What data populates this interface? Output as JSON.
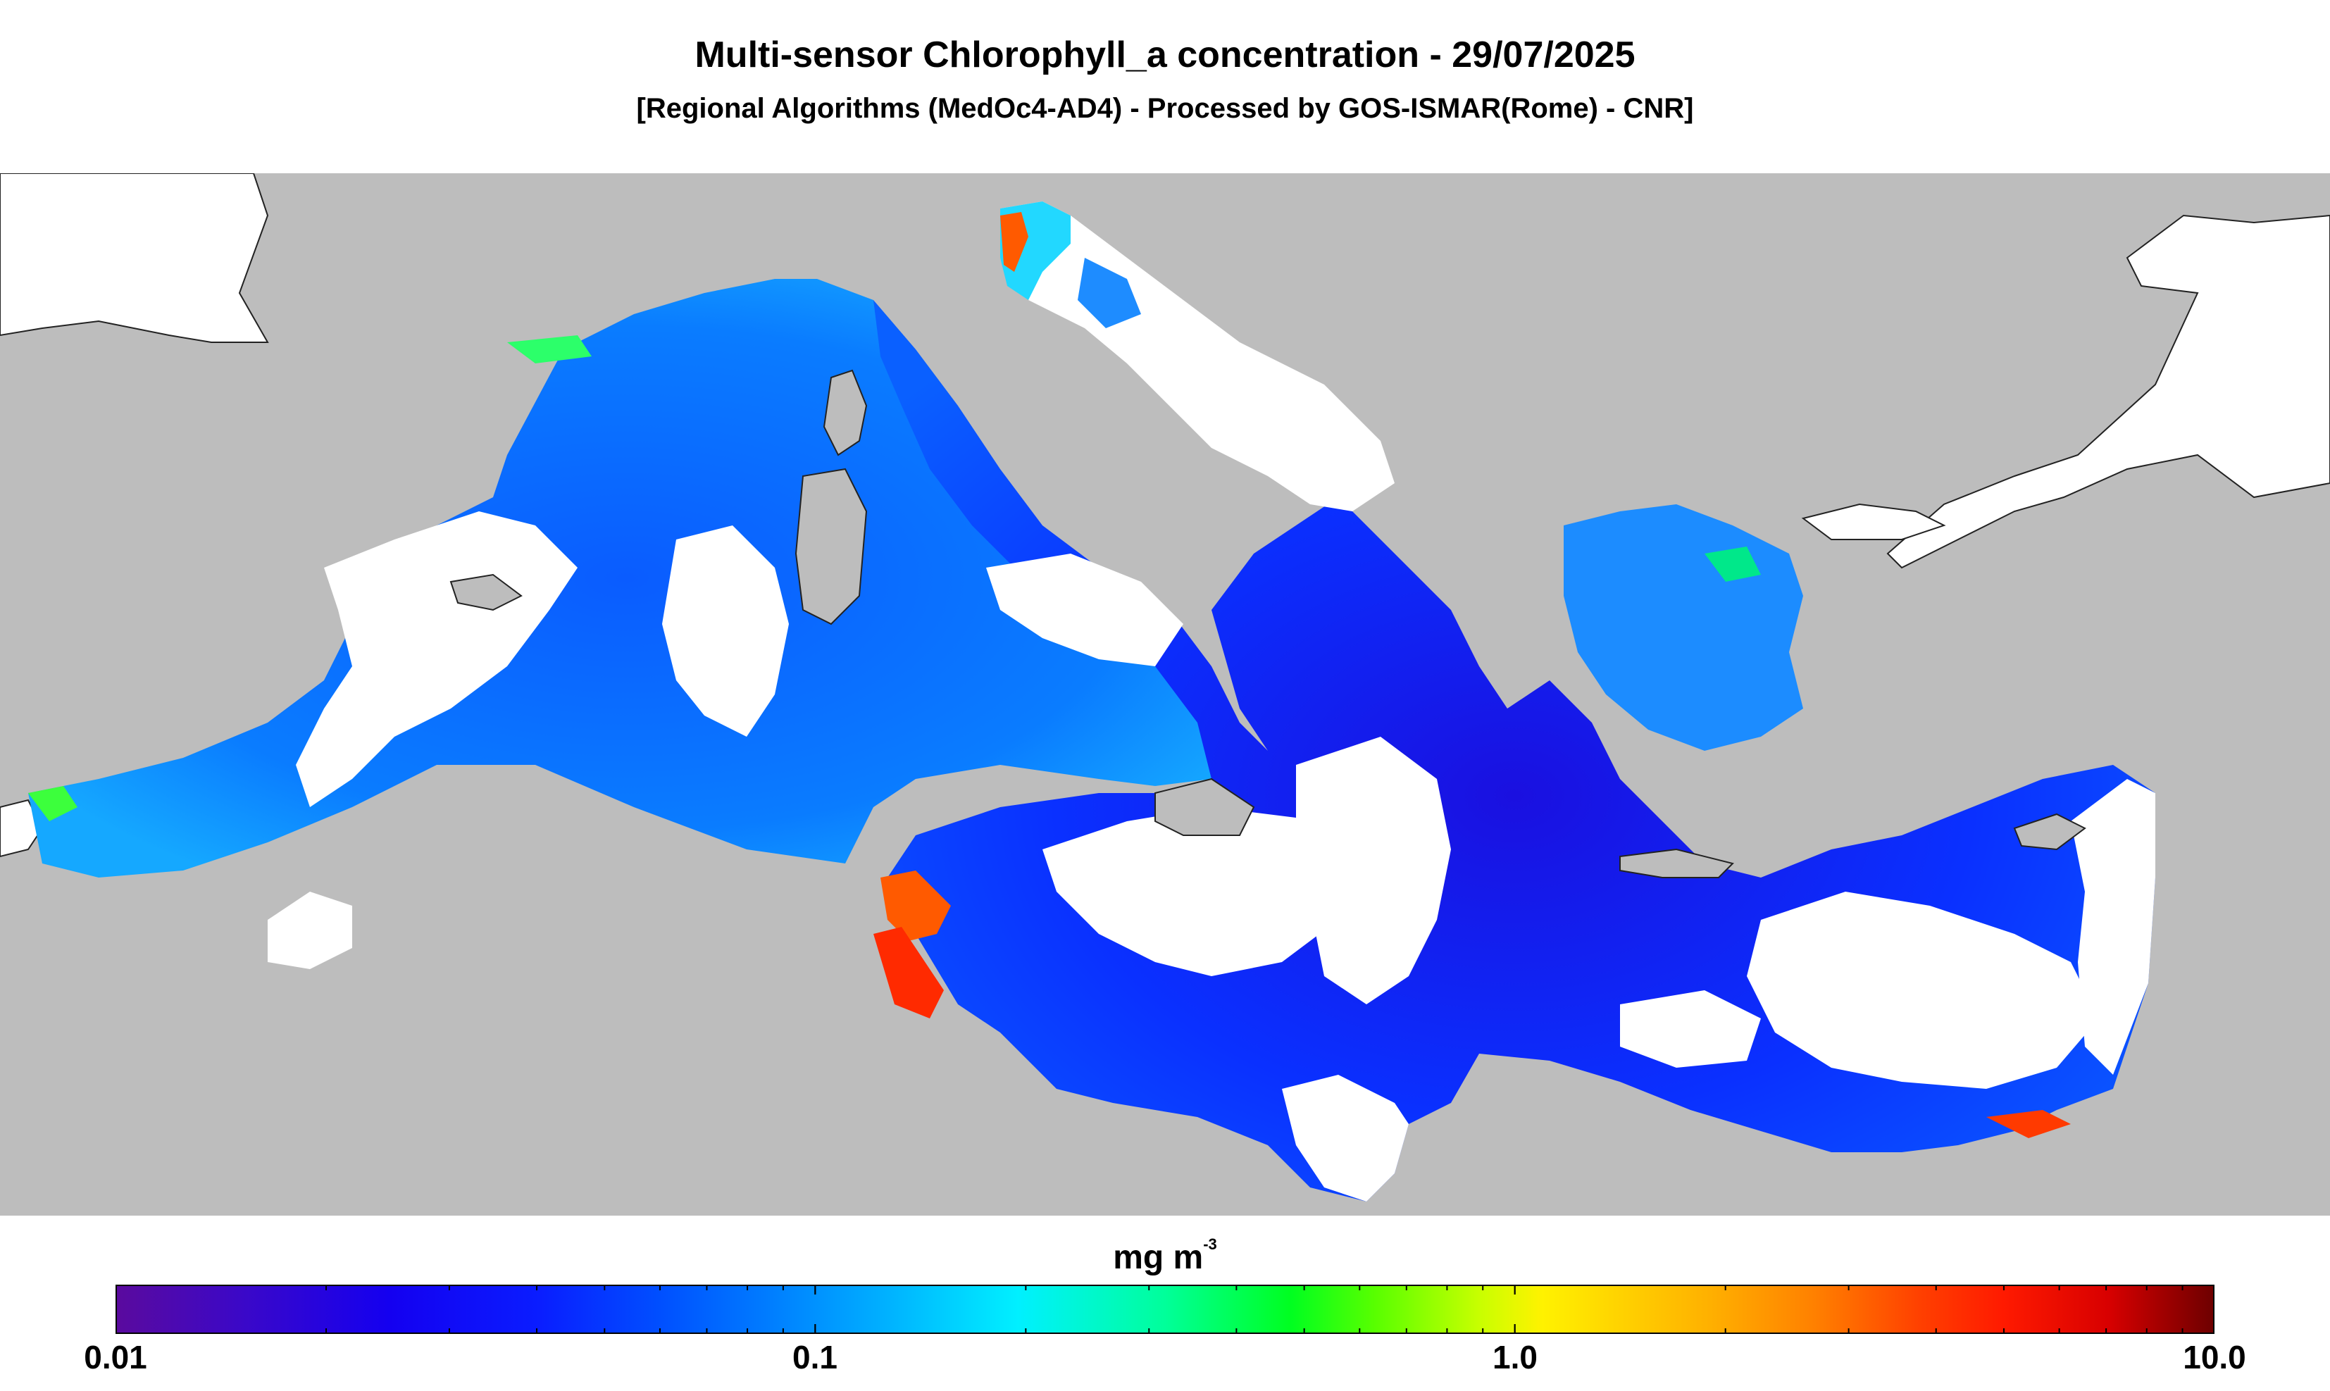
{
  "header": {
    "title": "Multi-sensor Chlorophyll_a concentration - 29/07/2025",
    "subtitle": "[Regional Algorithms (MedOc4-AD4) - Processed by GOS-ISMAR(Rome) - CNR]"
  },
  "map": {
    "region": "Mediterranean Sea",
    "land_color": "#bdbdbd",
    "cloud_nodata_color": "#ffffff",
    "dominant_sea_color": "#0a28ff"
  },
  "colorbar": {
    "unit_main": "mg m",
    "unit_exponent": "-3",
    "scale": "log",
    "range": [
      0.01,
      10.0
    ],
    "labels": [
      "0.01",
      "0.1",
      "1.0",
      "10.0"
    ]
  }
}
